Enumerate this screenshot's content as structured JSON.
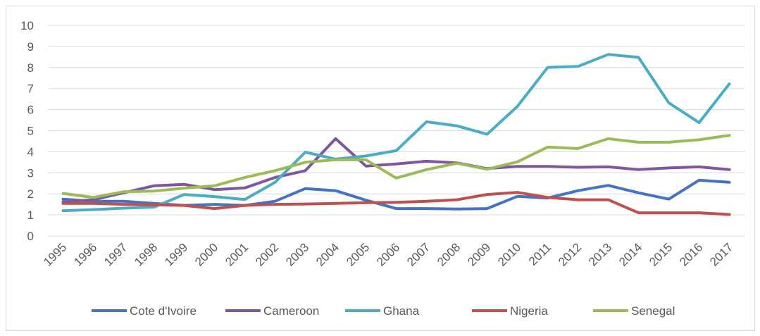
{
  "chart_data": {
    "type": "line",
    "title": "",
    "xlabel": "",
    "ylabel": "",
    "ylim": [
      0,
      10
    ],
    "yticks": [
      "0",
      "1",
      "2",
      "3",
      "4",
      "5",
      "6",
      "7",
      "8",
      "9",
      "10"
    ],
    "grid": "horizontal",
    "legend_position": "bottom",
    "categories": [
      "1995",
      "1996",
      "1997",
      "1998",
      "1999",
      "2000",
      "2001",
      "2002",
      "2003",
      "2004",
      "2005",
      "2006",
      "2007",
      "2008",
      "2009",
      "2010",
      "2011",
      "2012",
      "2013",
      "2014",
      "2015",
      "2016",
      "2017"
    ],
    "series": [
      {
        "name": "Cote d'Ivoire",
        "color": "#4472c4",
        "values": [
          1.75,
          1.65,
          1.65,
          1.55,
          1.45,
          1.5,
          1.45,
          1.65,
          2.25,
          2.15,
          1.7,
          1.3,
          1.3,
          1.28,
          1.3,
          1.88,
          1.8,
          2.15,
          2.4,
          2.05,
          1.75,
          2.65,
          2.55
        ]
      },
      {
        "name": "Cameroon",
        "color": "#7e57a0",
        "values": [
          1.62,
          1.72,
          2.05,
          2.38,
          2.45,
          2.2,
          2.28,
          2.78,
          3.1,
          4.62,
          3.32,
          3.42,
          3.55,
          3.47,
          3.2,
          3.3,
          3.3,
          3.26,
          3.28,
          3.15,
          3.23,
          3.28,
          3.15
        ]
      },
      {
        "name": "Ghana",
        "color": "#4bacc6",
        "values": [
          1.2,
          1.25,
          1.32,
          1.37,
          1.97,
          1.87,
          1.73,
          2.55,
          3.98,
          3.65,
          3.8,
          4.05,
          5.42,
          5.23,
          4.83,
          6.15,
          8.0,
          8.05,
          8.62,
          8.48,
          6.32,
          5.38,
          7.22
        ]
      },
      {
        "name": "Nigeria",
        "color": "#c0504d",
        "values": [
          1.55,
          1.55,
          1.5,
          1.48,
          1.45,
          1.3,
          1.45,
          1.5,
          1.52,
          1.55,
          1.58,
          1.6,
          1.65,
          1.72,
          1.97,
          2.07,
          1.83,
          1.72,
          1.72,
          1.1,
          1.1,
          1.1,
          1.02
        ]
      },
      {
        "name": "Senegal",
        "color": "#9bbb59",
        "values": [
          2.02,
          1.83,
          2.1,
          2.13,
          2.27,
          2.38,
          2.78,
          3.1,
          3.5,
          3.62,
          3.62,
          2.75,
          3.15,
          3.45,
          3.17,
          3.52,
          4.22,
          4.15,
          4.62,
          4.45,
          4.45,
          4.57,
          4.78
        ]
      }
    ]
  }
}
